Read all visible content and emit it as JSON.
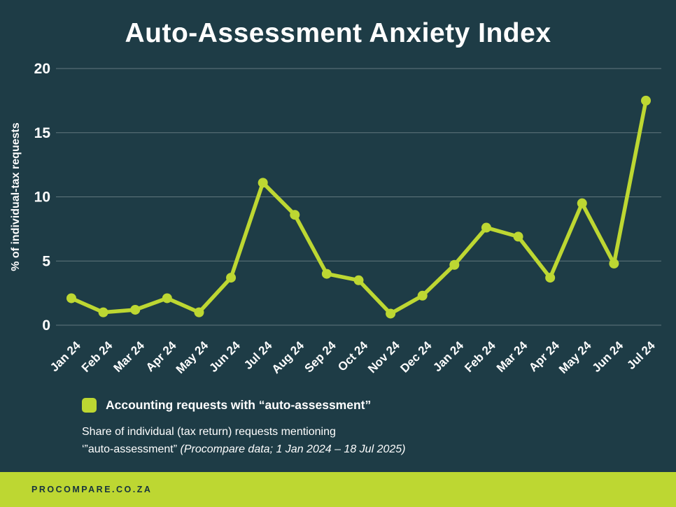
{
  "title": "Auto-Assessment Anxiety Index",
  "chart_data": {
    "type": "line",
    "title": "Auto-Assessment Anxiety Index",
    "categories": [
      "Jan 24",
      "Feb 24",
      "Mar 24",
      "Apr 24",
      "May 24",
      "Jun 24",
      "Jul 24",
      "Aug 24",
      "Sep 24",
      "Oct 24",
      "Nov 24",
      "Dec 24",
      "Jan 24",
      "Feb 24",
      "Mar 24",
      "Apr 24",
      "May 24",
      "Jun 24",
      "Jul 24"
    ],
    "series": [
      {
        "name": "Accounting requests with “auto-assessment”",
        "values": [
          2.1,
          1.0,
          1.2,
          2.1,
          1.0,
          3.7,
          11.1,
          8.6,
          4.0,
          3.5,
          0.9,
          2.3,
          4.7,
          7.6,
          6.9,
          3.7,
          9.5,
          4.8,
          17.5
        ]
      }
    ],
    "xlabel": "",
    "ylabel": "% of individual-tax requests",
    "ylim": [
      0,
      20
    ],
    "yticks": [
      0,
      5,
      10,
      15,
      20
    ],
    "grid": true,
    "legend_position": "below-chart",
    "marker": "circle"
  },
  "legend": {
    "label": "Accounting requests with “auto-assessment”"
  },
  "caption": {
    "line1": "Share of individual (tax return) requests mentioning",
    "line2_prefix": "‘”auto-assessment” ",
    "line2_italic": "(Procompare data; 1 Jan 2024 – 18 Jul 2025)"
  },
  "footer": {
    "brand": "PROCOMPARE.CO.ZA"
  },
  "colors": {
    "background": "#1e3c46",
    "accent": "#bdd732",
    "grid": "rgba(255,255,255,0.30)",
    "text": "#ffffff",
    "footer_text": "#17333d"
  }
}
